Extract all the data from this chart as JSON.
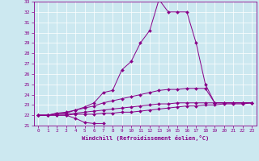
{
  "xlabel": "Windchill (Refroidissement éolien,°C)",
  "background_color": "#cce8f0",
  "line_color": "#880088",
  "grid_color": "#ffffff",
  "xlim": [
    -0.5,
    23.5
  ],
  "ylim": [
    21,
    33
  ],
  "yticks": [
    21,
    22,
    23,
    24,
    25,
    26,
    27,
    28,
    29,
    30,
    31,
    32,
    33
  ],
  "xticks": [
    0,
    1,
    2,
    3,
    4,
    5,
    6,
    7,
    8,
    9,
    10,
    11,
    12,
    13,
    14,
    15,
    16,
    17,
    18,
    19,
    20,
    21,
    22,
    23
  ],
  "series": [
    [
      22.0,
      22.0,
      22.2,
      22.2,
      22.5,
      22.8,
      23.2,
      24.2,
      24.4,
      26.4,
      27.2,
      29.0,
      30.2,
      33.2,
      32.0,
      32.0,
      32.0,
      29.0,
      25.0,
      23.2,
      23.2,
      23.2,
      23.2,
      23.2
    ],
    [
      22.0,
      22.0,
      22.0,
      22.0,
      21.7,
      21.3,
      21.2,
      21.2,
      null,
      null,
      null,
      null,
      null,
      null,
      null,
      null,
      null,
      null,
      null,
      null,
      null,
      null,
      null,
      null
    ],
    [
      22.0,
      22.0,
      22.2,
      22.3,
      22.5,
      22.7,
      22.9,
      23.2,
      23.4,
      23.6,
      23.8,
      24.0,
      24.2,
      24.4,
      24.5,
      24.5,
      24.6,
      24.6,
      24.6,
      23.2,
      23.2,
      23.2,
      23.2,
      23.2
    ],
    [
      22.0,
      22.0,
      22.1,
      22.1,
      22.2,
      22.3,
      22.4,
      22.5,
      22.6,
      22.7,
      22.8,
      22.9,
      23.0,
      23.1,
      23.1,
      23.2,
      23.2,
      23.2,
      23.2,
      23.2,
      23.2,
      23.2,
      23.2,
      23.2
    ],
    [
      22.0,
      22.0,
      22.0,
      22.0,
      22.1,
      22.1,
      22.1,
      22.2,
      22.2,
      22.3,
      22.3,
      22.4,
      22.5,
      22.6,
      22.7,
      22.8,
      22.9,
      22.9,
      23.0,
      23.0,
      23.1,
      23.1,
      23.1,
      23.2
    ]
  ]
}
